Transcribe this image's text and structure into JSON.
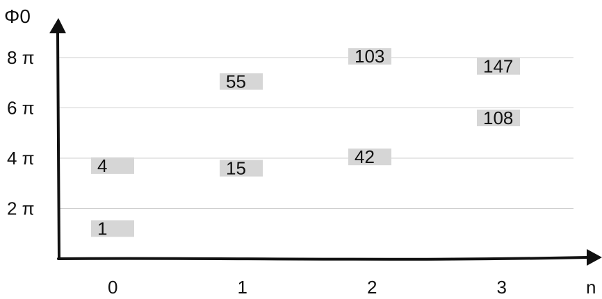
{
  "chart_data": {
    "type": "scatter",
    "title": "",
    "xlabel": "n",
    "ylabel": "Φ0",
    "x_ticks": [
      "0",
      "1",
      "2",
      "3"
    ],
    "y_ticks": [
      {
        "value": 2,
        "label": "2 π"
      },
      {
        "value": 4,
        "label": "4 π"
      },
      {
        "value": 6,
        "label": "6 π"
      },
      {
        "value": 8,
        "label": "8 π"
      }
    ],
    "xlim": [
      -0.45,
      3.6
    ],
    "ylim": [
      0,
      9
    ],
    "grid": true,
    "points": [
      {
        "x": 0,
        "y": 1.2,
        "label": "1"
      },
      {
        "x": 0,
        "y": 3.7,
        "label": "4"
      },
      {
        "x": 1,
        "y": 3.6,
        "label": "15"
      },
      {
        "x": 1,
        "y": 7.05,
        "label": "55"
      },
      {
        "x": 2,
        "y": 4.05,
        "label": "42"
      },
      {
        "x": 2,
        "y": 8.05,
        "label": "103"
      },
      {
        "x": 3,
        "y": 5.6,
        "label": "108"
      },
      {
        "x": 3,
        "y": 7.65,
        "label": "147"
      }
    ],
    "colors": {
      "label_box": "#d6d6d6",
      "grid": "#cfcfcf",
      "axis": "#111111"
    }
  }
}
